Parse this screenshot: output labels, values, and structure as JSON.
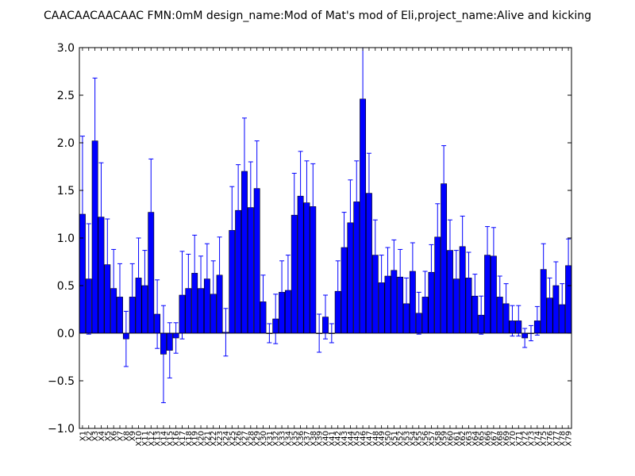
{
  "chart_data": {
    "type": "bar",
    "title": "CAACAACAACAAC  FMN:0mM  design_name:Mod of Mat's mod of Eli,project_name:Alive and kicking",
    "xlabel": "",
    "ylabel": "",
    "ylim": [
      -1.0,
      3.0
    ],
    "yticks": [
      "−1.0",
      "−0.5",
      "0.0",
      "0.5",
      "1.0",
      "1.5",
      "2.0",
      "2.5",
      "3.0"
    ],
    "grid": false,
    "bar_color": "#0000ff",
    "error_color": "#0000ff",
    "categories": [
      "X1",
      "X2",
      "X3",
      "X4",
      "X5",
      "X6",
      "X7",
      "X8",
      "X9",
      "X10",
      "X11",
      "X12",
      "X13",
      "X14",
      "X15",
      "X16",
      "X17",
      "X18",
      "X19",
      "X20",
      "X21",
      "X22",
      "X23",
      "X24",
      "X25",
      "X26",
      "X27",
      "X28",
      "X29",
      "X30",
      "X31",
      "X32",
      "X33",
      "X34",
      "X35",
      "X36",
      "X37",
      "X38",
      "X39",
      "X40",
      "X41",
      "X42",
      "X43",
      "X44",
      "X45",
      "X46",
      "X47",
      "X48",
      "X49",
      "X50",
      "X51",
      "X52",
      "X53",
      "X54",
      "X55",
      "X56",
      "X57",
      "X58",
      "X59",
      "X60",
      "X61",
      "X62",
      "X63",
      "X64",
      "X65",
      "X66",
      "X67",
      "X68",
      "X69",
      "X70",
      "X71",
      "X72",
      "X73",
      "X74",
      "X75",
      "X76",
      "X77",
      "X78",
      "X79"
    ],
    "values": [
      1.25,
      0.57,
      2.02,
      1.22,
      0.72,
      0.47,
      0.38,
      -0.06,
      0.38,
      0.58,
      0.5,
      1.27,
      0.2,
      -0.22,
      -0.18,
      -0.05,
      0.4,
      0.47,
      0.63,
      0.47,
      0.57,
      0.41,
      0.61,
      0.01,
      1.08,
      1.29,
      1.7,
      1.32,
      1.52,
      0.33,
      0.0,
      0.15,
      0.43,
      0.45,
      1.24,
      1.44,
      1.37,
      1.33,
      0.0,
      0.17,
      0.0,
      0.44,
      0.9,
      1.16,
      1.38,
      2.46,
      1.47,
      0.82,
      0.53,
      0.6,
      0.66,
      0.59,
      0.31,
      0.65,
      0.21,
      0.38,
      0.64,
      1.01,
      1.57,
      0.87,
      0.57,
      0.91,
      0.58,
      0.39,
      0.19,
      0.82,
      0.81,
      0.38,
      0.31,
      0.13,
      0.13,
      -0.05,
      0.0,
      0.13,
      0.67,
      0.37,
      0.5,
      0.3,
      0.71
    ],
    "errors": [
      0.82,
      0.58,
      0.66,
      0.57,
      0.48,
      0.41,
      0.35,
      0.29,
      0.35,
      0.42,
      0.37,
      0.56,
      0.36,
      0.51,
      0.29,
      0.16,
      0.46,
      0.36,
      0.4,
      0.34,
      0.37,
      0.35,
      0.4,
      0.25,
      0.46,
      0.48,
      0.56,
      0.48,
      0.5,
      0.28,
      0.1,
      0.26,
      0.33,
      0.37,
      0.44,
      0.47,
      0.44,
      0.45,
      0.2,
      0.23,
      0.1,
      0.32,
      0.37,
      0.45,
      0.43,
      0.54,
      0.42,
      0.37,
      0.29,
      0.3,
      0.32,
      0.29,
      0.27,
      0.3,
      0.22,
      0.27,
      0.29,
      0.35,
      0.4,
      0.32,
      0.3,
      0.32,
      0.27,
      0.23,
      0.2,
      0.3,
      0.3,
      0.22,
      0.21,
      0.16,
      0.16,
      0.1,
      0.08,
      0.15,
      0.27,
      0.21,
      0.25,
      0.22,
      0.28
    ]
  }
}
